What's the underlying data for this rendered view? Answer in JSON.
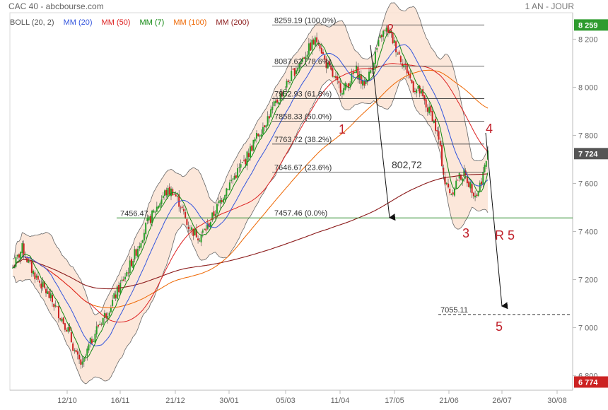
{
  "header": {
    "title": "CAC 40 - abcbourse.com",
    "period": "1 AN - JOUR"
  },
  "legend": [
    {
      "label": "BOLL (20, 2)",
      "color": "#555555"
    },
    {
      "label": "MM (20)",
      "color": "#3355dd"
    },
    {
      "label": "MM (50)",
      "color": "#dd2222"
    },
    {
      "label": "MM (7)",
      "color": "#118811"
    },
    {
      "label": "MM (100)",
      "color": "#ee6600"
    },
    {
      "label": "MM (200)",
      "color": "#8b1a1a"
    }
  ],
  "chart_data": {
    "type": "candlestick",
    "ylim": [
      6740,
      8310
    ],
    "y_ticks": [
      6800,
      7000,
      7200,
      7400,
      7600,
      7800,
      8000,
      8200
    ],
    "y_tick_labels": [
      "6 800",
      "7 000",
      "7 200",
      "7 400",
      "7 600",
      "7 800",
      "8 000",
      "8 200"
    ],
    "x_ticks": [
      "12/10",
      "16/11",
      "21/12",
      "30/01",
      "05/03",
      "11/04",
      "17/05",
      "21/06",
      "26/07",
      "30/08"
    ],
    "price_badges": [
      {
        "label": "8 259",
        "value": 8259,
        "color": "#2e9b2e"
      },
      {
        "label": "7 724",
        "value": 7724,
        "color": "#555555"
      },
      {
        "label": "6 774",
        "value": 6774,
        "color": "#cc2222"
      }
    ],
    "fibonacci": [
      {
        "label": "8259.19  (100.0%)",
        "value": 8259.19
      },
      {
        "label": "8087.62  (78.6%)",
        "value": 8087.62
      },
      {
        "label": "7952.93  (61.8%)",
        "value": 7952.93
      },
      {
        "label": "7858.33  (50.0%)",
        "value": 7858.33
      },
      {
        "label": "7763.72  (38.2%)",
        "value": 7763.72
      },
      {
        "label": "7646.67  (23.6%)",
        "value": 7646.67
      },
      {
        "label": "7457.46  (0.0%)",
        "value": 7457.46
      }
    ],
    "support": {
      "label": "7456.47",
      "value": 7456.47
    },
    "target": {
      "label": "7055.11",
      "value": 7055.11
    },
    "annotations": {
      "wave_labels": [
        "1",
        "2",
        "3",
        "4",
        "5",
        "R 5"
      ],
      "move_label": "802,72"
    },
    "price_path": [
      [
        0,
        7250
      ],
      [
        6,
        7330
      ],
      [
        12,
        7240
      ],
      [
        18,
        7180
      ],
      [
        24,
        7120
      ],
      [
        30,
        7050
      ],
      [
        35,
        6990
      ],
      [
        40,
        6880
      ],
      [
        44,
        6840
      ],
      [
        48,
        6920
      ],
      [
        54,
        7010
      ],
      [
        60,
        7070
      ],
      [
        66,
        7150
      ],
      [
        72,
        7230
      ],
      [
        78,
        7320
      ],
      [
        84,
        7420
      ],
      [
        90,
        7490
      ],
      [
        96,
        7560
      ],
      [
        101,
        7570
      ],
      [
        106,
        7510
      ],
      [
        110,
        7430
      ],
      [
        114,
        7400
      ],
      [
        118,
        7380
      ],
      [
        123,
        7420
      ],
      [
        129,
        7500
      ],
      [
        135,
        7580
      ],
      [
        141,
        7640
      ],
      [
        147,
        7700
      ],
      [
        153,
        7780
      ],
      [
        159,
        7850
      ],
      [
        165,
        7920
      ],
      [
        171,
        7990
      ],
      [
        177,
        8060
      ],
      [
        183,
        8120
      ],
      [
        189,
        8180
      ],
      [
        193,
        8200
      ],
      [
        197,
        8110
      ],
      [
        201,
        8060
      ],
      [
        205,
        8010
      ],
      [
        209,
        7990
      ],
      [
        213,
        8030
      ],
      [
        217,
        8070
      ],
      [
        221,
        8010
      ],
      [
        225,
        8050
      ],
      [
        229,
        8140
      ],
      [
        233,
        8220
      ],
      [
        237,
        8240
      ],
      [
        241,
        8180
      ],
      [
        245,
        8120
      ],
      [
        249,
        8070
      ],
      [
        253,
        8000
      ],
      [
        257,
        7980
      ],
      [
        261,
        7920
      ],
      [
        265,
        7880
      ],
      [
        269,
        7780
      ],
      [
        273,
        7600
      ],
      [
        277,
        7560
      ],
      [
        281,
        7620
      ],
      [
        285,
        7640
      ],
      [
        289,
        7590
      ],
      [
        293,
        7550
      ],
      [
        297,
        7640
      ],
      [
        300,
        7724
      ]
    ]
  }
}
